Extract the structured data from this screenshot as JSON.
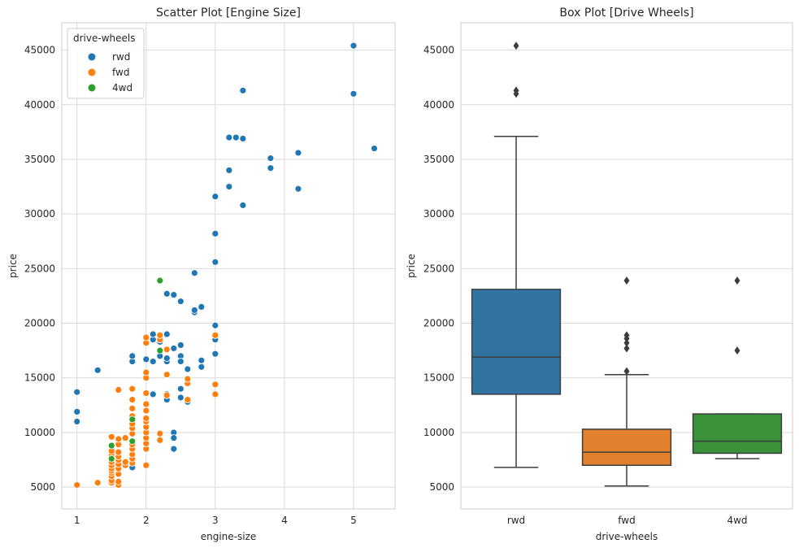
{
  "chart_data": [
    {
      "type": "scatter",
      "title": "Scatter Plot [Engine Size]",
      "xlabel": "engine-size",
      "ylabel": "price",
      "xlim": [
        0.78,
        5.6
      ],
      "ylim": [
        3000,
        47500
      ],
      "xticks": [
        1,
        2,
        3,
        4,
        5
      ],
      "yticks": [
        5000,
        10000,
        15000,
        20000,
        25000,
        30000,
        35000,
        40000,
        45000
      ],
      "grid": true,
      "legend": {
        "title": "drive-wheels",
        "placement": "top-left"
      },
      "series": [
        {
          "name": "rwd",
          "color": "#1f77b4",
          "points": [
            [
              1.0,
              11000
            ],
            [
              1.0,
              11900
            ],
            [
              1.0,
              13700
            ],
            [
              1.3,
              15700
            ],
            [
              1.8,
              16500
            ],
            [
              1.8,
              17000
            ],
            [
              1.8,
              6800
            ],
            [
              2.0,
              12500
            ],
            [
              2.0,
              16700
            ],
            [
              2.0,
              15500
            ],
            [
              2.1,
              16500
            ],
            [
              2.1,
              18500
            ],
            [
              2.1,
              19000
            ],
            [
              2.1,
              13500
            ],
            [
              2.2,
              17000
            ],
            [
              2.2,
              18300
            ],
            [
              2.3,
              19000
            ],
            [
              2.3,
              16500
            ],
            [
              2.3,
              16800
            ],
            [
              2.3,
              13000
            ],
            [
              2.3,
              13500
            ],
            [
              2.3,
              22700
            ],
            [
              2.4,
              22600
            ],
            [
              2.4,
              17700
            ],
            [
              2.4,
              10000
            ],
            [
              2.4,
              9500
            ],
            [
              2.4,
              8500
            ],
            [
              2.5,
              22000
            ],
            [
              2.5,
              18000
            ],
            [
              2.5,
              17000
            ],
            [
              2.5,
              16500
            ],
            [
              2.5,
              14000
            ],
            [
              2.5,
              13200
            ],
            [
              2.6,
              12800
            ],
            [
              2.6,
              15800
            ],
            [
              2.7,
              24600
            ],
            [
              2.7,
              21000
            ],
            [
              2.7,
              21200
            ],
            [
              2.8,
              21500
            ],
            [
              2.8,
              16000
            ],
            [
              2.8,
              16600
            ],
            [
              3.0,
              19800
            ],
            [
              3.0,
              18500
            ],
            [
              3.0,
              17200
            ],
            [
              3.0,
              25600
            ],
            [
              3.0,
              28200
            ],
            [
              3.0,
              31600
            ],
            [
              3.2,
              32500
            ],
            [
              3.2,
              34000
            ],
            [
              3.2,
              37000
            ],
            [
              3.3,
              37000
            ],
            [
              3.4,
              36900
            ],
            [
              3.4,
              30800
            ],
            [
              3.4,
              41300
            ],
            [
              3.8,
              34200
            ],
            [
              3.8,
              35100
            ],
            [
              4.2,
              32300
            ],
            [
              4.2,
              35600
            ],
            [
              5.0,
              45400
            ],
            [
              5.0,
              41000
            ],
            [
              5.3,
              36000
            ]
          ]
        },
        {
          "name": "fwd",
          "color": "#ff7f0e",
          "points": [
            [
              1.0,
              5200
            ],
            [
              1.3,
              5400
            ],
            [
              1.5,
              5400
            ],
            [
              1.5,
              5600
            ],
            [
              1.5,
              6000
            ],
            [
              1.5,
              6300
            ],
            [
              1.5,
              6500
            ],
            [
              1.5,
              6700
            ],
            [
              1.5,
              7000
            ],
            [
              1.5,
              7300
            ],
            [
              1.5,
              7600
            ],
            [
              1.5,
              8000
            ],
            [
              1.5,
              8300
            ],
            [
              1.5,
              9600
            ],
            [
              1.6,
              5200
            ],
            [
              1.6,
              5500
            ],
            [
              1.6,
              6200
            ],
            [
              1.6,
              6700
            ],
            [
              1.6,
              7100
            ],
            [
              1.6,
              7500
            ],
            [
              1.6,
              7800
            ],
            [
              1.6,
              8200
            ],
            [
              1.6,
              8900
            ],
            [
              1.6,
              9400
            ],
            [
              1.6,
              13900
            ],
            [
              1.7,
              7000
            ],
            [
              1.7,
              7300
            ],
            [
              1.7,
              9500
            ],
            [
              1.8,
              7200
            ],
            [
              1.8,
              7600
            ],
            [
              1.8,
              8000
            ],
            [
              1.8,
              8500
            ],
            [
              1.8,
              9200
            ],
            [
              1.8,
              9900
            ],
            [
              1.8,
              10400
            ],
            [
              1.8,
              10800
            ],
            [
              1.8,
              11500
            ],
            [
              1.8,
              12200
            ],
            [
              1.8,
              13000
            ],
            [
              1.8,
              14000
            ],
            [
              1.8,
              8900
            ],
            [
              2.0,
              7000
            ],
            [
              2.0,
              8500
            ],
            [
              2.0,
              9000
            ],
            [
              2.0,
              9500
            ],
            [
              2.0,
              10000
            ],
            [
              2.0,
              10500
            ],
            [
              2.0,
              11000
            ],
            [
              2.0,
              11300
            ],
            [
              2.0,
              12000
            ],
            [
              2.0,
              12600
            ],
            [
              2.0,
              13600
            ],
            [
              2.0,
              15000
            ],
            [
              2.0,
              15500
            ],
            [
              2.0,
              18200
            ],
            [
              2.0,
              18700
            ],
            [
              2.2,
              9300
            ],
            [
              2.2,
              9900
            ],
            [
              2.2,
              18500
            ],
            [
              2.2,
              18900
            ],
            [
              2.3,
              15300
            ],
            [
              2.3,
              17600
            ],
            [
              2.3,
              13400
            ],
            [
              2.6,
              14500
            ],
            [
              2.6,
              14900
            ],
            [
              2.6,
              13000
            ],
            [
              3.0,
              13500
            ],
            [
              3.0,
              14400
            ],
            [
              3.0,
              18900
            ]
          ]
        },
        {
          "name": "4wd",
          "color": "#2ca02c",
          "points": [
            [
              1.5,
              7600
            ],
            [
              1.5,
              8800
            ],
            [
              1.8,
              9200
            ],
            [
              1.8,
              11200
            ],
            [
              2.2,
              23900
            ],
            [
              2.2,
              17500
            ]
          ]
        }
      ]
    },
    {
      "type": "box",
      "title": "Box Plot [Drive Wheels]",
      "xlabel": "drive-wheels",
      "ylabel": "price",
      "ylim": [
        3000,
        47500
      ],
      "yticks": [
        5000,
        10000,
        15000,
        20000,
        25000,
        30000,
        35000,
        40000,
        45000
      ],
      "grid": true,
      "categories": [
        "rwd",
        "fwd",
        "4wd"
      ],
      "boxes": [
        {
          "category": "rwd",
          "color": "#3274a1",
          "whisker_low": 6800,
          "q1": 13500,
          "median": 16900,
          "q3": 23100,
          "whisker_high": 37100,
          "outliers": [
            45400,
            41300,
            41000
          ]
        },
        {
          "category": "fwd",
          "color": "#e1812c",
          "whisker_low": 5100,
          "q1": 7000,
          "median": 8200,
          "q3": 10300,
          "whisker_high": 15300,
          "outliers": [
            23900,
            18900,
            18600,
            18200,
            17700,
            15600
          ]
        },
        {
          "category": "4wd",
          "color": "#3a923a",
          "whisker_low": 7600,
          "q1": 8100,
          "median": 9200,
          "q3": 11700,
          "whisker_high": 11700,
          "outliers": [
            23900,
            17500
          ]
        }
      ]
    }
  ]
}
